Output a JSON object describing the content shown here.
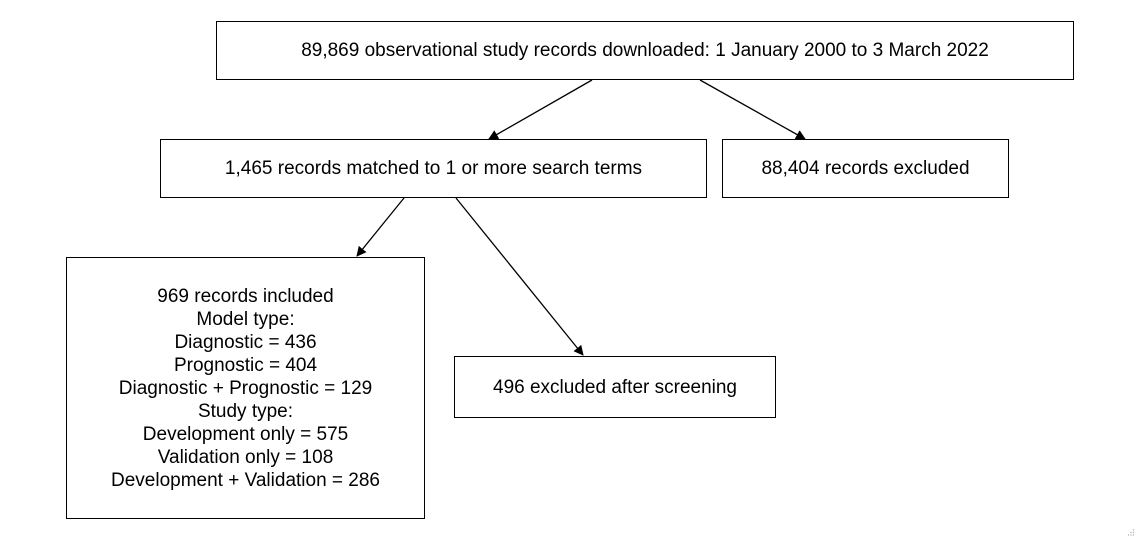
{
  "nodes": {
    "downloaded": {
      "text": "89,869 observational study records downloaded: 1 January 2000 to 3 March 2022"
    },
    "matched": {
      "text": "1,465 records matched to 1 or more search terms"
    },
    "excluded": {
      "text": "88,404 records excluded"
    },
    "included": {
      "lines": [
        "969 records included",
        "Model type:",
        "Diagnostic = 436",
        "Prognostic = 404",
        "Diagnostic + Prognostic = 129",
        "Study type:",
        "Development only = 575",
        "Validation only = 108",
        "Development + Validation = 286"
      ]
    },
    "screening_excluded": {
      "text": "496 excluded after screening"
    }
  },
  "edges": [
    {
      "from": "downloaded",
      "to": "matched"
    },
    {
      "from": "downloaded",
      "to": "excluded"
    },
    {
      "from": "matched",
      "to": "included"
    },
    {
      "from": "matched",
      "to": "screening_excluded"
    }
  ],
  "colors": {
    "stroke": "#000000",
    "fill": "#ffffff",
    "text": "#000000"
  }
}
